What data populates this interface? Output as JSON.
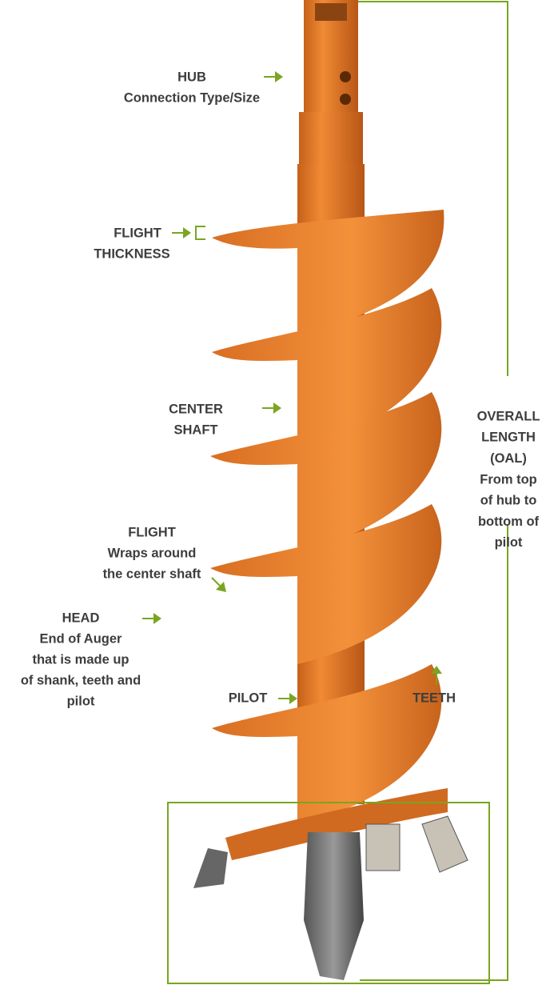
{
  "labels": [
    {
      "lines": [
        "HUB",
        "Connection Type/Size"
      ]
    },
    {
      "lines": [
        "FLIGHT",
        "THICKNESS"
      ]
    },
    {
      "lines": [
        "CENTER",
        "SHAFT"
      ]
    },
    {
      "lines": [
        "FLIGHT",
        "Wraps around",
        "the center shaft"
      ]
    },
    {
      "lines": [
        "HEAD",
        "End of Auger",
        "that is made up",
        "of shank, teeth and",
        "pilot"
      ]
    },
    {
      "lines": [
        "PILOT"
      ]
    },
    {
      "lines": [
        "TEETH"
      ]
    },
    {
      "lines": [
        "OVERALL",
        "LENGTH",
        "(OAL)",
        "From top",
        "of hub to",
        "bottom of",
        "pilot"
      ]
    }
  ]
}
